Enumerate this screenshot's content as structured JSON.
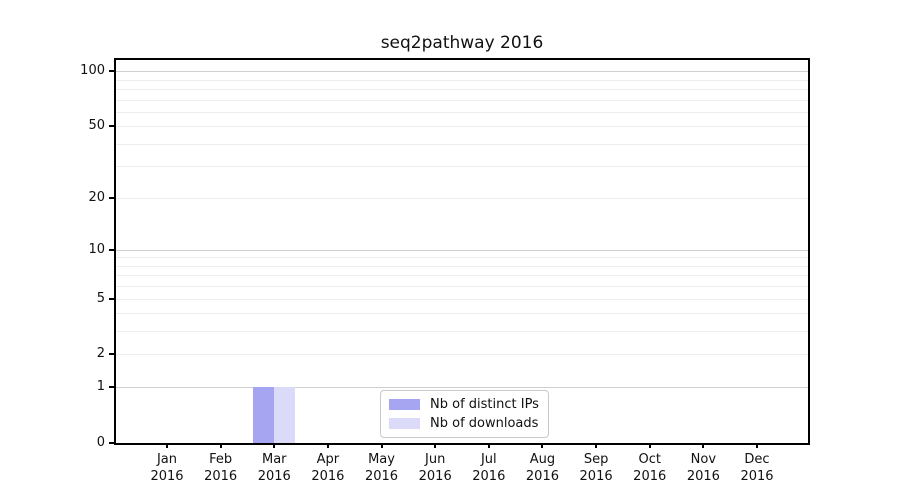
{
  "chart_data": {
    "type": "bar",
    "title": "seq2pathway 2016",
    "year": "2016",
    "categories": [
      "Jan",
      "Feb",
      "Mar",
      "Apr",
      "May",
      "Jun",
      "Jul",
      "Aug",
      "Sep",
      "Oct",
      "Nov",
      "Dec"
    ],
    "series": [
      {
        "name": "Nb of distinct IPs",
        "color": "#a5a5f2",
        "values": [
          0,
          0,
          1,
          0,
          0,
          0,
          0,
          0,
          0,
          0,
          0,
          0
        ]
      },
      {
        "name": "Nb of downloads",
        "color": "#dbdbf9",
        "values": [
          0,
          0,
          1,
          0,
          0,
          0,
          0,
          0,
          0,
          0,
          0,
          0
        ]
      }
    ],
    "y_ticks": [
      0,
      1,
      2,
      5,
      10,
      20,
      50,
      100
    ],
    "y_scale": "log10(1+y)",
    "ylim": [
      0,
      115
    ],
    "xlabel": "",
    "ylabel": "",
    "grid": true,
    "legend_position": "lower center",
    "grid_major_values": [
      1,
      10,
      100
    ],
    "grid_minor_values": [
      2,
      3,
      4,
      5,
      6,
      7,
      8,
      9,
      20,
      30,
      40,
      50,
      60,
      70,
      80,
      90
    ]
  }
}
